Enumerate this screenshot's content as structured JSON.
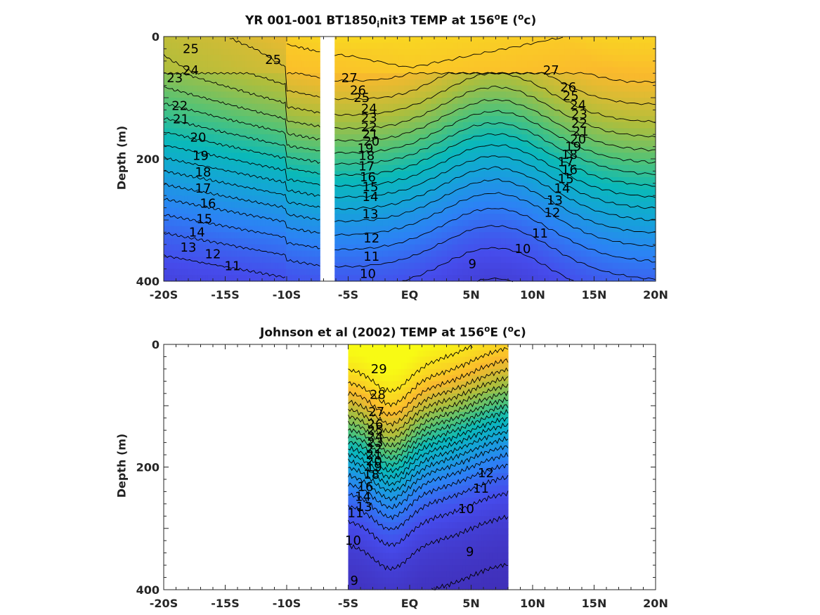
{
  "chart_data": [
    {
      "type": "heatmap",
      "title_parts": {
        "a": "YR 001-001 BT1850",
        "sub": "i",
        "b": "nit3 TEMP at 156",
        "sup1": "o",
        "c": "E (",
        "sup2": "o",
        "d": "c)"
      },
      "ylabel": "Depth (m)",
      "y_ticks": [
        0,
        200,
        400
      ],
      "y_range": [
        0,
        400
      ],
      "x_ticks": [
        "-20S",
        "-15S",
        "-10S",
        "-5S",
        "EQ",
        "5N",
        "10N",
        "15N",
        "20N"
      ],
      "x_range": [
        -20,
        20
      ],
      "data_extent_segments": [
        [
          -20,
          -7.3
        ],
        [
          -6.1,
          20
        ]
      ],
      "colormap": "parula",
      "temperature_range": [
        8,
        29
      ],
      "contour_levels": [
        9,
        10,
        11,
        12,
        13,
        14,
        15,
        16,
        17,
        18,
        19,
        20,
        21,
        22,
        23,
        24,
        25,
        26,
        27
      ],
      "contour_labels": [
        {
          "text": "25",
          "lat": -17.8,
          "depth": 20
        },
        {
          "text": "24",
          "lat": -17.8,
          "depth": 55
        },
        {
          "text": "23",
          "lat": -19.1,
          "depth": 68
        },
        {
          "text": "22",
          "lat": -18.7,
          "depth": 113
        },
        {
          "text": "21",
          "lat": -18.6,
          "depth": 135
        },
        {
          "text": "20",
          "lat": -17.2,
          "depth": 165
        },
        {
          "text": "19",
          "lat": -17.0,
          "depth": 195
        },
        {
          "text": "18",
          "lat": -16.8,
          "depth": 222
        },
        {
          "text": "17",
          "lat": -16.8,
          "depth": 248
        },
        {
          "text": "16",
          "lat": -16.4,
          "depth": 273
        },
        {
          "text": "15",
          "lat": -16.7,
          "depth": 298
        },
        {
          "text": "14",
          "lat": -17.3,
          "depth": 320
        },
        {
          "text": "13",
          "lat": -18.0,
          "depth": 345
        },
        {
          "text": "12",
          "lat": -16.0,
          "depth": 356
        },
        {
          "text": "11",
          "lat": -14.4,
          "depth": 375
        },
        {
          "text": "25",
          "lat": -11.1,
          "depth": 38
        },
        {
          "text": "27",
          "lat": -4.9,
          "depth": 68
        },
        {
          "text": "26",
          "lat": -4.2,
          "depth": 88
        },
        {
          "text": "25",
          "lat": -3.9,
          "depth": 100
        },
        {
          "text": "24",
          "lat": -3.3,
          "depth": 118
        },
        {
          "text": "23",
          "lat": -3.3,
          "depth": 133
        },
        {
          "text": "22",
          "lat": -3.3,
          "depth": 148
        },
        {
          "text": "21",
          "lat": -3.2,
          "depth": 160
        },
        {
          "text": "20",
          "lat": -3.1,
          "depth": 171
        },
        {
          "text": "19",
          "lat": -3.6,
          "depth": 183
        },
        {
          "text": "18",
          "lat": -3.5,
          "depth": 195
        },
        {
          "text": "17",
          "lat": -3.5,
          "depth": 212
        },
        {
          "text": "16",
          "lat": -3.4,
          "depth": 230
        },
        {
          "text": "15",
          "lat": -3.2,
          "depth": 246
        },
        {
          "text": "14",
          "lat": -3.2,
          "depth": 262
        },
        {
          "text": "13",
          "lat": -3.2,
          "depth": 290
        },
        {
          "text": "12",
          "lat": -3.1,
          "depth": 330
        },
        {
          "text": "11",
          "lat": -3.1,
          "depth": 360
        },
        {
          "text": "10",
          "lat": -3.4,
          "depth": 388
        },
        {
          "text": "9",
          "lat": 5.1,
          "depth": 372
        },
        {
          "text": "27",
          "lat": 11.5,
          "depth": 55
        },
        {
          "text": "26",
          "lat": 12.9,
          "depth": 83
        },
        {
          "text": "25",
          "lat": 13.1,
          "depth": 97
        },
        {
          "text": "24",
          "lat": 13.7,
          "depth": 112
        },
        {
          "text": "23",
          "lat": 13.8,
          "depth": 127
        },
        {
          "text": "22",
          "lat": 13.8,
          "depth": 142
        },
        {
          "text": "21",
          "lat": 13.9,
          "depth": 155
        },
        {
          "text": "20",
          "lat": 13.7,
          "depth": 168
        },
        {
          "text": "19",
          "lat": 13.3,
          "depth": 180
        },
        {
          "text": "18",
          "lat": 13.0,
          "depth": 193
        },
        {
          "text": "17",
          "lat": 12.7,
          "depth": 205
        },
        {
          "text": "16",
          "lat": 13.0,
          "depth": 218
        },
        {
          "text": "15",
          "lat": 12.7,
          "depth": 233
        },
        {
          "text": "14",
          "lat": 12.4,
          "depth": 248
        },
        {
          "text": "13",
          "lat": 11.8,
          "depth": 268
        },
        {
          "text": "12",
          "lat": 11.6,
          "depth": 288
        },
        {
          "text": "11",
          "lat": 10.6,
          "depth": 322
        },
        {
          "text": "10",
          "lat": 9.2,
          "depth": 347
        }
      ]
    },
    {
      "type": "heatmap",
      "title_parts": {
        "a": "Johnson et al (2002) TEMP at 156",
        "sup1": "o",
        "b": "E (",
        "sup2": "o",
        "c": "c)"
      },
      "ylabel": "Depth (m)",
      "y_ticks": [
        0,
        200,
        400
      ],
      "y_range": [
        0,
        400
      ],
      "x_ticks": [
        "-20S",
        "-15S",
        "-10S",
        "-5S",
        "EQ",
        "5N",
        "10N",
        "15N",
        "20N"
      ],
      "x_range": [
        -20,
        20
      ],
      "data_extent_segments": [
        [
          -5.0,
          8.0
        ]
      ],
      "colormap": "parula",
      "temperature_range": [
        8,
        30
      ],
      "contour_levels": [
        9,
        10,
        11,
        12,
        13,
        14,
        15,
        16,
        17,
        18,
        19,
        20,
        21,
        22,
        23,
        24,
        25,
        26,
        27,
        28,
        29
      ],
      "contour_labels": [
        {
          "text": "29",
          "lat": -2.5,
          "depth": 40
        },
        {
          "text": "28",
          "lat": -2.6,
          "depth": 82
        },
        {
          "text": "27",
          "lat": -2.7,
          "depth": 110
        },
        {
          "text": "26",
          "lat": -2.8,
          "depth": 130
        },
        {
          "text": "25",
          "lat": -2.8,
          "depth": 140
        },
        {
          "text": "24",
          "lat": -2.8,
          "depth": 150
        },
        {
          "text": "23",
          "lat": -2.8,
          "depth": 160
        },
        {
          "text": "22",
          "lat": -2.9,
          "depth": 170
        },
        {
          "text": "21",
          "lat": -2.9,
          "depth": 180
        },
        {
          "text": "20",
          "lat": -2.9,
          "depth": 190
        },
        {
          "text": "19",
          "lat": -2.9,
          "depth": 200
        },
        {
          "text": "18",
          "lat": -3.1,
          "depth": 212
        },
        {
          "text": "16",
          "lat": -3.6,
          "depth": 232
        },
        {
          "text": "14",
          "lat": -3.8,
          "depth": 248
        },
        {
          "text": "13",
          "lat": -3.7,
          "depth": 265
        },
        {
          "text": "11",
          "lat": -4.4,
          "depth": 275
        },
        {
          "text": "10",
          "lat": -4.6,
          "depth": 320
        },
        {
          "text": "9",
          "lat": -4.5,
          "depth": 385
        },
        {
          "text": "12",
          "lat": 6.2,
          "depth": 210
        },
        {
          "text": "11",
          "lat": 5.8,
          "depth": 235
        },
        {
          "text": "10",
          "lat": 4.6,
          "depth": 268
        },
        {
          "text": "9",
          "lat": 4.9,
          "depth": 338
        }
      ]
    }
  ]
}
